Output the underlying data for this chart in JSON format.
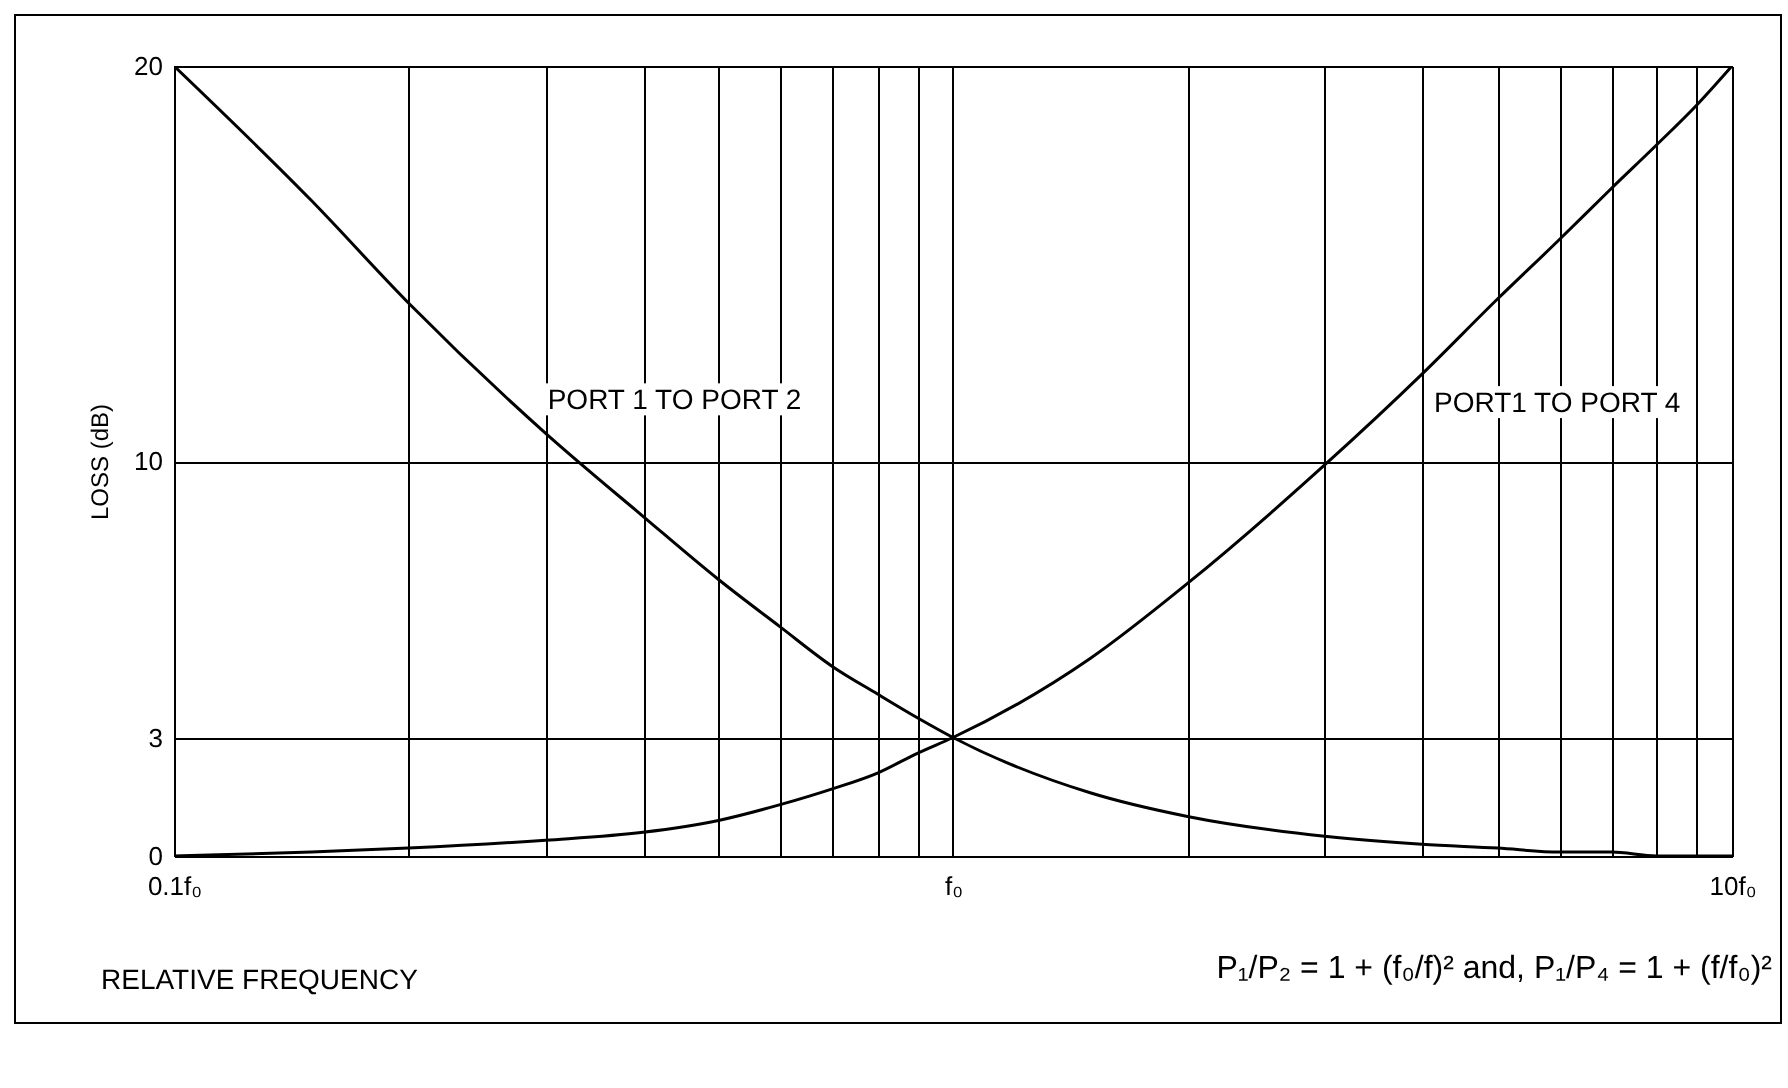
{
  "chart_data": {
    "type": "line",
    "xlabel": "RELATIVE FREQUENCY",
    "ylabel": "LOSS (dB)",
    "x": [
      0.1,
      0.15,
      0.2,
      0.3,
      0.4,
      0.5,
      0.6,
      0.7,
      0.8,
      0.9,
      1,
      1.5,
      2,
      3,
      4,
      5,
      6,
      7,
      8,
      9,
      10
    ],
    "series": [
      {
        "name": "PORT 1 TO PORT 2",
        "color": "#000000",
        "values": [
          20,
          16.6,
          14.0,
          10.7,
          8.6,
          7.0,
          5.8,
          4.8,
          4.1,
          3.5,
          3.0,
          1.6,
          1.0,
          0.5,
          0.3,
          0.2,
          0.1,
          0.1,
          0.0,
          0.0,
          0.0
        ]
      },
      {
        "name": "PORT1 TO PORT 4",
        "color": "#000000",
        "values": [
          0.0,
          0.1,
          0.2,
          0.4,
          0.6,
          0.9,
          1.3,
          1.7,
          2.1,
          2.6,
          3.0,
          5.0,
          6.9,
          9.9,
          12.2,
          14.1,
          15.6,
          16.9,
          18.0,
          19.0,
          20
        ]
      }
    ],
    "xlim": [
      0.1,
      10
    ],
    "ylim": [
      0,
      20
    ],
    "xticks": [
      {
        "value": 0.1,
        "label": "0.1f₀"
      },
      {
        "value": 0.2,
        "label": null
      },
      {
        "value": 0.3,
        "label": null
      },
      {
        "value": 0.4,
        "label": null
      },
      {
        "value": 0.5,
        "label": null
      },
      {
        "value": 0.6,
        "label": null
      },
      {
        "value": 0.7,
        "label": null
      },
      {
        "value": 0.8,
        "label": null
      },
      {
        "value": 0.9,
        "label": null
      },
      {
        "value": 1,
        "label": "f₀"
      },
      {
        "value": 2,
        "label": null
      },
      {
        "value": 3,
        "label": null
      },
      {
        "value": 4,
        "label": null
      },
      {
        "value": 5,
        "label": null
      },
      {
        "value": 6,
        "label": null
      },
      {
        "value": 7,
        "label": null
      },
      {
        "value": 8,
        "label": null
      },
      {
        "value": 9,
        "label": null
      },
      {
        "value": 10,
        "label": "10f₀"
      }
    ],
    "yticks": [
      0,
      3,
      10,
      20
    ],
    "log": "x",
    "grid": true,
    "line_style": "solid",
    "annotations": [
      "P₁/P₂ = 1 + (f₀/f)² and, P₁/P₄ = 1 + (f/f₀)²"
    ]
  }
}
